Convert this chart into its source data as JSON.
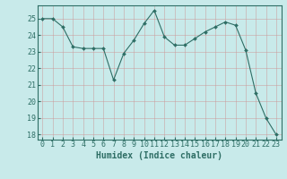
{
  "x": [
    0,
    1,
    2,
    3,
    4,
    5,
    6,
    7,
    8,
    9,
    10,
    11,
    12,
    13,
    14,
    15,
    16,
    17,
    18,
    19,
    20,
    21,
    22,
    23
  ],
  "y": [
    25.0,
    25.0,
    24.5,
    23.3,
    23.2,
    23.2,
    23.2,
    21.3,
    22.9,
    23.7,
    24.7,
    25.5,
    23.9,
    23.4,
    23.4,
    23.8,
    24.2,
    24.5,
    24.8,
    24.6,
    23.1,
    20.5,
    19.0,
    18.0
  ],
  "line_color": "#2e6e65",
  "marker_color": "#2e6e65",
  "bg_color": "#c8eaea",
  "grid_color": "#b0d4d4",
  "xlabel": "Humidex (Indice chaleur)",
  "yticks": [
    18,
    19,
    20,
    21,
    22,
    23,
    24,
    25
  ],
  "xticks": [
    0,
    1,
    2,
    3,
    4,
    5,
    6,
    7,
    8,
    9,
    10,
    11,
    12,
    13,
    14,
    15,
    16,
    17,
    18,
    19,
    20,
    21,
    22,
    23
  ],
  "font_color": "#2e6e65",
  "tick_fontsize": 6,
  "label_fontsize": 7
}
